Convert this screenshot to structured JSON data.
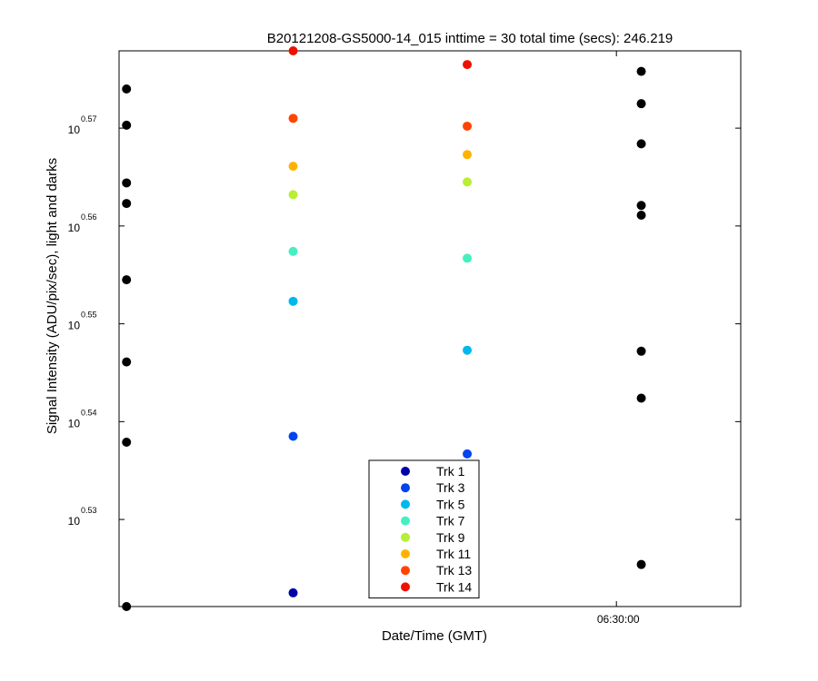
{
  "chart_data": {
    "type": "scatter",
    "title": "B20121208-GS5000-14_015 inttime = 30 total time (secs): 246.219",
    "xlabel": "Date/Time (GMT)",
    "ylabel": "Signal Intensity (ADU/pix/sec), light and darks",
    "y_scale": "log10",
    "ylim_log10": [
      0.5211,
      0.5779
    ],
    "y_ticks": [
      {
        "base": "10",
        "exp": "0.53",
        "log10": 0.53
      },
      {
        "base": "10",
        "exp": "0.54",
        "log10": 0.54
      },
      {
        "base": "10",
        "exp": "0.55",
        "log10": 0.55
      },
      {
        "base": "10",
        "exp": "0.56",
        "log10": 0.56
      },
      {
        "base": "10",
        "exp": "0.57",
        "log10": 0.57
      }
    ],
    "x_range_sec": [
      0,
      250
    ],
    "x_ticks": [
      {
        "label": "06:30:00",
        "t": 200
      }
    ],
    "x_positions_sec": [
      3,
      70,
      140,
      210
    ],
    "darks": {
      "color": "#000000",
      "points": [
        {
          "t": 3,
          "log10": 0.574
        },
        {
          "t": 3,
          "log10": 0.5703
        },
        {
          "t": 3,
          "log10": 0.5644
        },
        {
          "t": 3,
          "log10": 0.5623
        },
        {
          "t": 3,
          "log10": 0.5545
        },
        {
          "t": 3,
          "log10": 0.5461
        },
        {
          "t": 3,
          "log10": 0.5379
        },
        {
          "t": 3,
          "log10": 0.5211
        },
        {
          "t": 210,
          "log10": 0.5758
        },
        {
          "t": 210,
          "log10": 0.5725
        },
        {
          "t": 210,
          "log10": 0.5684
        },
        {
          "t": 210,
          "log10": 0.5621
        },
        {
          "t": 210,
          "log10": 0.5611
        },
        {
          "t": 210,
          "log10": 0.5472
        },
        {
          "t": 210,
          "log10": 0.5424
        },
        {
          "t": 210,
          "log10": 0.5254
        }
      ]
    },
    "series": [
      {
        "name": "Trk 1",
        "color": "#0000aa",
        "points": [
          {
            "t": 70,
            "log10": 0.5225
          }
        ]
      },
      {
        "name": "Trk 3",
        "color": "#0044ee",
        "points": [
          {
            "t": 70,
            "log10": 0.5385
          },
          {
            "t": 140,
            "log10": 0.5367
          }
        ]
      },
      {
        "name": "Trk 5",
        "color": "#00b8ee",
        "points": [
          {
            "t": 70,
            "log10": 0.5523
          },
          {
            "t": 140,
            "log10": 0.5473
          }
        ]
      },
      {
        "name": "Trk 7",
        "color": "#44f0c0",
        "points": [
          {
            "t": 70,
            "log10": 0.5574
          },
          {
            "t": 140,
            "log10": 0.5567
          }
        ]
      },
      {
        "name": "Trk 9",
        "color": "#b8ee33",
        "points": [
          {
            "t": 70,
            "log10": 0.5632
          },
          {
            "t": 140,
            "log10": 0.5645
          }
        ]
      },
      {
        "name": "Trk 11",
        "color": "#ffb300",
        "points": [
          {
            "t": 70,
            "log10": 0.5661
          },
          {
            "t": 140,
            "log10": 0.5673
          }
        ]
      },
      {
        "name": "Trk 13",
        "color": "#ff4400",
        "points": [
          {
            "t": 70,
            "log10": 0.571
          },
          {
            "t": 140,
            "log10": 0.5702
          }
        ]
      },
      {
        "name": "Trk 14",
        "color": "#ee1100",
        "points": [
          {
            "t": 70,
            "log10": 0.5779
          },
          {
            "t": 140,
            "log10": 0.5765
          }
        ]
      }
    ],
    "legend_location": "bottom-center"
  }
}
